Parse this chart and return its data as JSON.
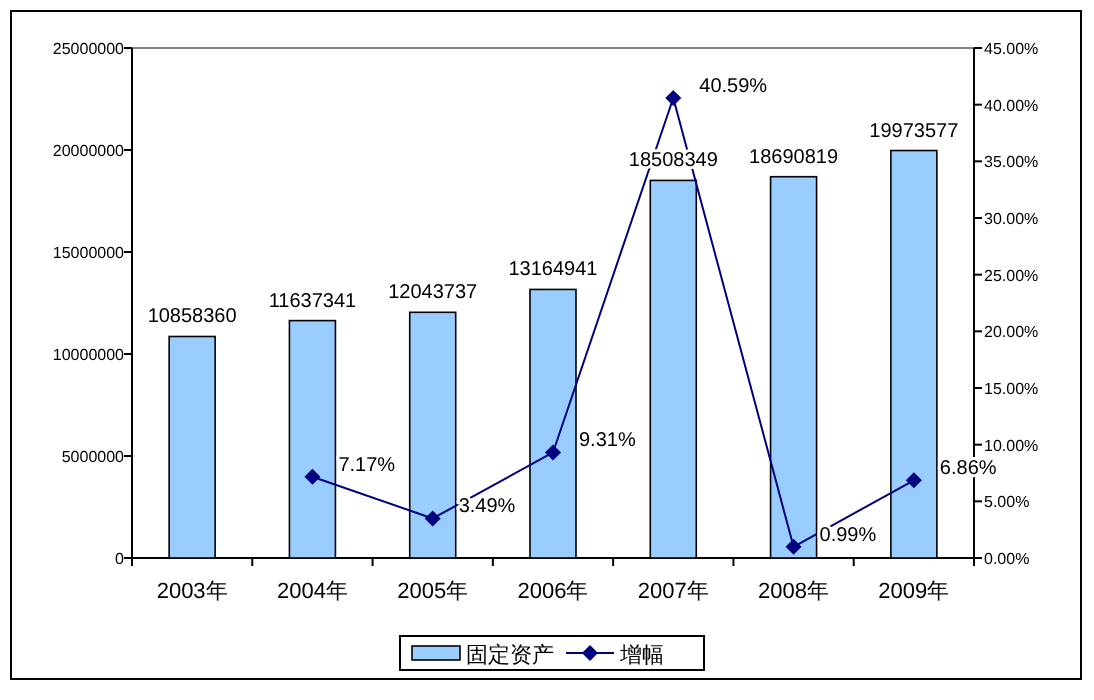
{
  "chart_data": {
    "type": "bar",
    "categories": [
      "2003年",
      "2004年",
      "2005年",
      "2006年",
      "2007年",
      "2008年",
      "2009年"
    ],
    "series": [
      {
        "name": "固定资产",
        "color": "#99ccff",
        "values": [
          10858360,
          11637341,
          12043737,
          13164941,
          18508349,
          18690819,
          19973577
        ]
      },
      {
        "name": "增幅",
        "type": "line",
        "axis": "y2",
        "color": "#000080",
        "marker": "diamond",
        "values": [
          null,
          7.17,
          3.49,
          9.31,
          40.59,
          0.99,
          6.86
        ],
        "value_labels": [
          null,
          "7.17%",
          "3.49%",
          "9.31%",
          "40.59%",
          "0.99%",
          "6.86%"
        ]
      }
    ],
    "ylim": [
      0,
      25000000
    ],
    "yticks": [
      0,
      5000000,
      10000000,
      15000000,
      20000000,
      25000000
    ],
    "y2lim": [
      0,
      45
    ],
    "y2ticks": [
      {
        "value": 0,
        "label": "0.00%"
      },
      {
        "value": 5,
        "label": "5.00%"
      },
      {
        "value": 10,
        "label": "10.00%"
      },
      {
        "value": 15,
        "label": "15.00%"
      },
      {
        "value": 20,
        "label": "20.00%"
      },
      {
        "value": 25,
        "label": "25.00%"
      },
      {
        "value": 30,
        "label": "30.00%"
      },
      {
        "value": 35,
        "label": "35.00%"
      },
      {
        "value": 40,
        "label": "40.00%"
      },
      {
        "value": 45,
        "label": "45.00%"
      }
    ],
    "data_labels": true,
    "grid": false,
    "legend": "bottom"
  }
}
